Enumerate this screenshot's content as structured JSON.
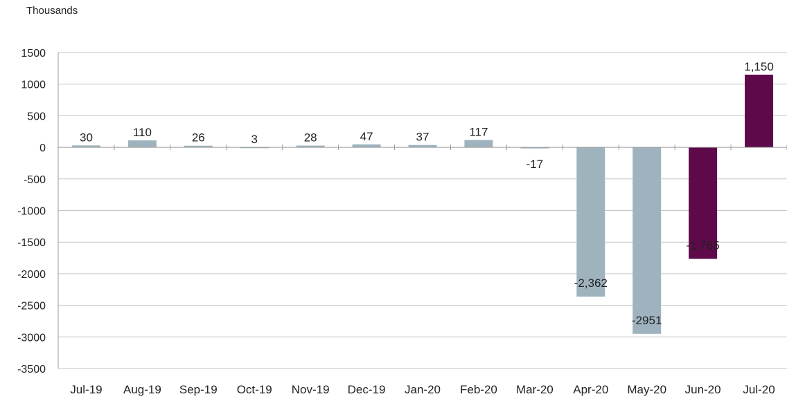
{
  "chart_data": {
    "type": "bar",
    "unit_label": "Thousands",
    "title": "",
    "xlabel": "",
    "ylabel": "",
    "categories": [
      "Jul-19",
      "Aug-19",
      "Sep-19",
      "Oct-19",
      "Nov-19",
      "Dec-19",
      "Jan-20",
      "Feb-20",
      "Mar-20",
      "Apr-20",
      "May-20",
      "Jun-20",
      "Jul-20"
    ],
    "values": [
      30,
      110,
      26,
      3,
      28,
      47,
      37,
      117,
      -17,
      -2362,
      -2951,
      -1765,
      1150
    ],
    "data_labels": [
      "30",
      "110",
      "26",
      "3",
      "28",
      "47",
      "37",
      "117",
      "-17",
      "-2,362",
      "-2951",
      "-1,765",
      "1,150"
    ],
    "bar_colors": [
      "#9fb3bf",
      "#9fb3bf",
      "#9fb3bf",
      "#9fb3bf",
      "#9fb3bf",
      "#9fb3bf",
      "#9fb3bf",
      "#9fb3bf",
      "#9fb3bf",
      "#9fb3bf",
      "#9fb3bf",
      "#5e0a4a",
      "#5e0a4a"
    ],
    "ylim": [
      -3500,
      1500
    ],
    "yticks": [
      1500,
      1000,
      500,
      0,
      -500,
      -1000,
      -1500,
      -2000,
      -2500,
      -3000,
      -3500
    ],
    "grid": true
  }
}
